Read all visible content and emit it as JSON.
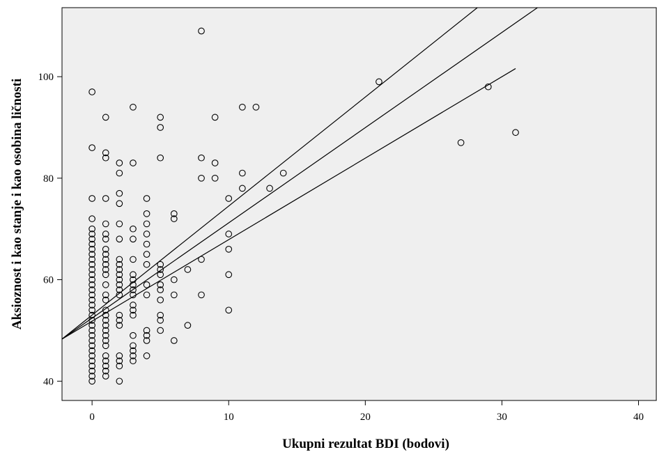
{
  "chart_data": {
    "type": "scatter",
    "title": "",
    "xlabel": "Ukupni rezultat BDI (bodovi)",
    "ylabel": "Aksioznost i kao stanje i kao osobina ličnosti",
    "xlim": [
      -2.2,
      41.3
    ],
    "ylim": [
      36.2,
      113.6
    ],
    "x_ticks": [
      "0",
      "10",
      "20",
      "30",
      "40"
    ],
    "y_ticks": [
      "40",
      "60",
      "80",
      "100"
    ],
    "grid": false,
    "colors": {
      "plot_background": "#efefef",
      "marker": "#000000",
      "line": "#000000"
    },
    "points": [
      [
        0,
        40
      ],
      [
        0,
        41
      ],
      [
        0,
        42
      ],
      [
        0,
        43
      ],
      [
        0,
        44
      ],
      [
        0,
        45
      ],
      [
        0,
        46
      ],
      [
        0,
        47
      ],
      [
        0,
        48
      ],
      [
        0,
        49
      ],
      [
        0,
        50
      ],
      [
        0,
        51
      ],
      [
        0,
        52
      ],
      [
        0,
        53
      ],
      [
        0,
        54
      ],
      [
        0,
        55
      ],
      [
        0,
        56
      ],
      [
        0,
        57
      ],
      [
        0,
        58
      ],
      [
        0,
        59
      ],
      [
        0,
        60
      ],
      [
        0,
        61
      ],
      [
        0,
        62
      ],
      [
        0,
        63
      ],
      [
        0,
        64
      ],
      [
        0,
        65
      ],
      [
        0,
        66
      ],
      [
        0,
        67
      ],
      [
        0,
        68
      ],
      [
        0,
        69
      ],
      [
        0,
        70
      ],
      [
        0,
        72
      ],
      [
        0,
        76
      ],
      [
        0,
        86
      ],
      [
        0,
        97
      ],
      [
        1,
        41
      ],
      [
        1,
        42
      ],
      [
        1,
        43
      ],
      [
        1,
        44
      ],
      [
        1,
        45
      ],
      [
        1,
        47
      ],
      [
        1,
        48
      ],
      [
        1,
        49
      ],
      [
        1,
        50
      ],
      [
        1,
        51
      ],
      [
        1,
        52
      ],
      [
        1,
        53
      ],
      [
        1,
        54
      ],
      [
        1,
        56
      ],
      [
        1,
        57
      ],
      [
        1,
        59
      ],
      [
        1,
        61
      ],
      [
        1,
        62
      ],
      [
        1,
        63
      ],
      [
        1,
        64
      ],
      [
        1,
        65
      ],
      [
        1,
        66
      ],
      [
        1,
        68
      ],
      [
        1,
        69
      ],
      [
        1,
        71
      ],
      [
        1,
        76
      ],
      [
        1,
        84
      ],
      [
        1,
        85
      ],
      [
        1,
        92
      ],
      [
        2,
        40
      ],
      [
        2,
        43
      ],
      [
        2,
        44
      ],
      [
        2,
        45
      ],
      [
        2,
        51
      ],
      [
        2,
        52
      ],
      [
        2,
        53
      ],
      [
        2,
        57
      ],
      [
        2,
        58
      ],
      [
        2,
        59
      ],
      [
        2,
        60
      ],
      [
        2,
        61
      ],
      [
        2,
        62
      ],
      [
        2,
        63
      ],
      [
        2,
        64
      ],
      [
        2,
        68
      ],
      [
        2,
        71
      ],
      [
        2,
        75
      ],
      [
        2,
        77
      ],
      [
        2,
        81
      ],
      [
        2,
        83
      ],
      [
        3,
        44
      ],
      [
        3,
        45
      ],
      [
        3,
        46
      ],
      [
        3,
        47
      ],
      [
        3,
        49
      ],
      [
        3,
        53
      ],
      [
        3,
        54
      ],
      [
        3,
        55
      ],
      [
        3,
        57
      ],
      [
        3,
        58
      ],
      [
        3,
        59
      ],
      [
        3,
        60
      ],
      [
        3,
        61
      ],
      [
        3,
        64
      ],
      [
        3,
        68
      ],
      [
        3,
        70
      ],
      [
        3,
        83
      ],
      [
        3,
        94
      ],
      [
        4,
        45
      ],
      [
        4,
        48
      ],
      [
        4,
        49
      ],
      [
        4,
        50
      ],
      [
        4,
        57
      ],
      [
        4,
        59
      ],
      [
        4,
        63
      ],
      [
        4,
        65
      ],
      [
        4,
        67
      ],
      [
        4,
        69
      ],
      [
        4,
        71
      ],
      [
        4,
        73
      ],
      [
        4,
        76
      ],
      [
        5,
        50
      ],
      [
        5,
        52
      ],
      [
        5,
        53
      ],
      [
        5,
        56
      ],
      [
        5,
        58
      ],
      [
        5,
        59
      ],
      [
        5,
        61
      ],
      [
        5,
        62
      ],
      [
        5,
        63
      ],
      [
        5,
        84
      ],
      [
        5,
        90
      ],
      [
        5,
        92
      ],
      [
        6,
        48
      ],
      [
        6,
        57
      ],
      [
        6,
        60
      ],
      [
        6,
        72
      ],
      [
        6,
        73
      ],
      [
        7,
        51
      ],
      [
        7,
        62
      ],
      [
        8,
        57
      ],
      [
        8,
        64
      ],
      [
        8,
        80
      ],
      [
        8,
        84
      ],
      [
        8,
        109
      ],
      [
        9,
        80
      ],
      [
        9,
        83
      ],
      [
        9,
        92
      ],
      [
        10,
        54
      ],
      [
        10,
        61
      ],
      [
        10,
        66
      ],
      [
        10,
        69
      ],
      [
        10,
        76
      ],
      [
        11,
        78
      ],
      [
        11,
        81
      ],
      [
        11,
        94
      ],
      [
        12,
        94
      ],
      [
        13,
        78
      ],
      [
        14,
        81
      ],
      [
        21,
        99
      ],
      [
        27,
        87
      ],
      [
        29,
        98
      ],
      [
        31,
        89
      ]
    ],
    "lines": [
      {
        "x": [
          -2.2,
          31
        ],
        "y": [
          48.3,
          101.6
        ]
      },
      {
        "x": [
          -2.2,
          32.6
        ],
        "y": [
          48.3,
          113.6
        ]
      },
      {
        "x": [
          -2.2,
          28.2
        ],
        "y": [
          48.3,
          113.6
        ]
      }
    ]
  }
}
